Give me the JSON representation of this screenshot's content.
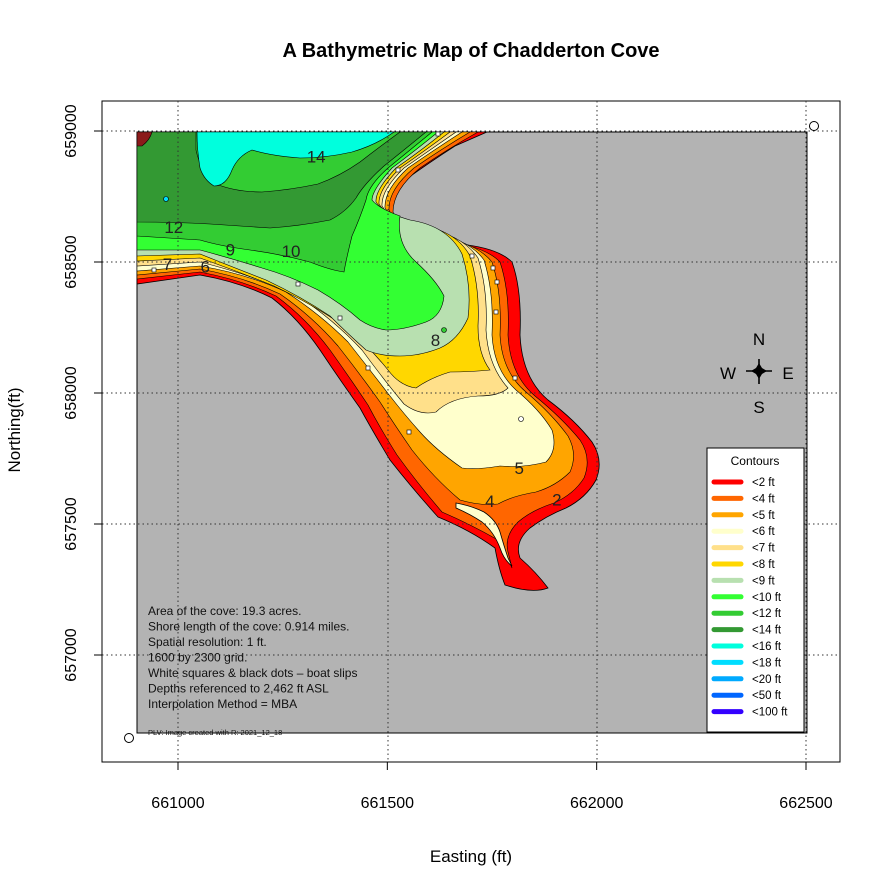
{
  "title": "A Bathymetric Map of  Chadderton Cove",
  "axes": {
    "xlabel": "Easting (ft)",
    "ylabel": "Northing(ft)",
    "x_ticks": [
      661000,
      661500,
      662000,
      662500
    ],
    "y_ticks": [
      657000,
      657500,
      658000,
      658500,
      659000
    ],
    "x_tick_labels": [
      "661000",
      "661500",
      "662000",
      "662500"
    ],
    "y_tick_labels": [
      "657000",
      "657500",
      "658000",
      "658500",
      "659000"
    ],
    "xlim": [
      660820,
      662580
    ],
    "ylim": [
      656580,
      659120
    ],
    "grid": true,
    "land_color": "#b3b3b3"
  },
  "compass": {
    "north": "N",
    "south": "S",
    "east": "E",
    "west": "W"
  },
  "contour_labels": [
    {
      "text": "14",
      "x": 661330,
      "y": 658880
    },
    {
      "text": "12",
      "x": 660990,
      "y": 658610
    },
    {
      "text": "9",
      "x": 661125,
      "y": 658525
    },
    {
      "text": "10",
      "x": 661270,
      "y": 658520
    },
    {
      "text": "7",
      "x": 660975,
      "y": 658470
    },
    {
      "text": "6",
      "x": 661065,
      "y": 658460
    },
    {
      "text": "8",
      "x": 661615,
      "y": 658180
    },
    {
      "text": "5",
      "x": 661815,
      "y": 657690
    },
    {
      "text": "4",
      "x": 661745,
      "y": 657565
    },
    {
      "text": "2",
      "x": 661905,
      "y": 657570
    }
  ],
  "legend": {
    "title": "Contours",
    "placement": "bottom-right",
    "items": [
      {
        "label": "<2 ft",
        "color": "#ff0000"
      },
      {
        "label": "<4 ft",
        "color": "#ff6600"
      },
      {
        "label": "<5 ft",
        "color": "#ffa500"
      },
      {
        "label": "<6 ft",
        "color": "#ffffcc"
      },
      {
        "label": "<7 ft",
        "color": "#ffe08a"
      },
      {
        "label": "<8 ft",
        "color": "#ffd700"
      },
      {
        "label": "<9 ft",
        "color": "#b8e0b0"
      },
      {
        "label": "<10 ft",
        "color": "#33ff33"
      },
      {
        "label": "<12 ft",
        "color": "#33cc33"
      },
      {
        "label": "<14 ft",
        "color": "#339933"
      },
      {
        "label": "<16 ft",
        "color": "#00ffdd"
      },
      {
        "label": "<18 ft",
        "color": "#00ddff"
      },
      {
        "label": "<20 ft",
        "color": "#00aaff"
      },
      {
        "label": "<50 ft",
        "color": "#0066ff"
      },
      {
        "label": "<100 ft",
        "color": "#3300ff"
      }
    ]
  },
  "info": {
    "lines": [
      "Area of the cove: 19.3 acres.",
      "Shore length of the cove: 0.914 miles.",
      "Spatial resolution: 1 ft.",
      "1600 by 2300 grid.",
      "White squares & black dots – boat slips",
      "Depths referenced to 2,462 ft ASL",
      "Interpolation Method =  MBA"
    ],
    "credit": "PLV: Image created with R: 2021_12_18"
  }
}
